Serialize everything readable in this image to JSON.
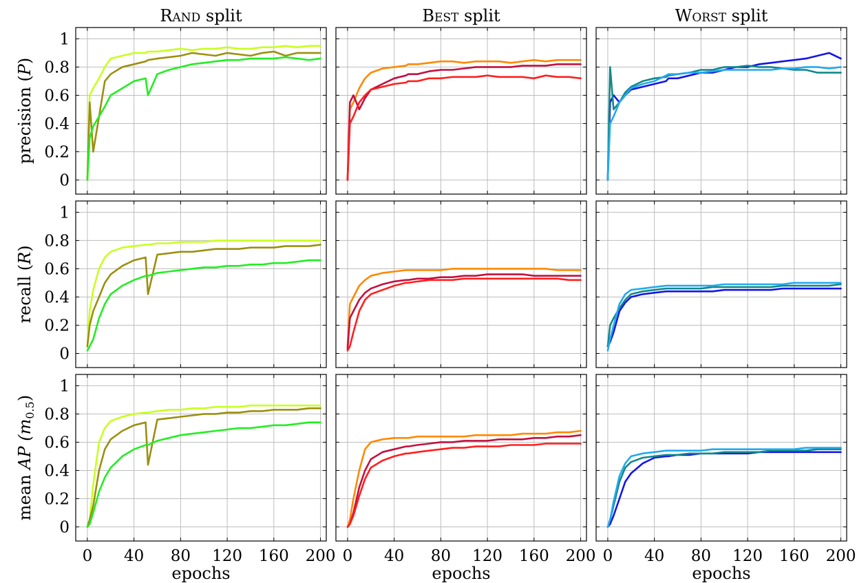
{
  "chart_data": {
    "type": "line",
    "layout": "3x3 grid of small multiples; rows = metrics, columns = data splits; shared x and y ticks",
    "grid": true,
    "columns": [
      {
        "key": "rand",
        "title_cap1": "R",
        "title_cap2": "AND",
        "title_rest": " split"
      },
      {
        "key": "best",
        "title_cap1": "B",
        "title_cap2": "EST",
        "title_rest": " split"
      },
      {
        "key": "worst",
        "title_cap1": "W",
        "title_cap2": "ORST",
        "title_rest": " split"
      }
    ],
    "rows": [
      {
        "key": "precision",
        "ylabel_pre": "precision (",
        "ylabel_var": "P",
        "ylabel_sub": "",
        "ylabel_post": ")"
      },
      {
        "key": "recall",
        "ylabel_pre": "recall (",
        "ylabel_var": "R",
        "ylabel_sub": "",
        "ylabel_post": ")"
      },
      {
        "key": "map",
        "ylabel_pre": "mean ",
        "ylabel_var": "AP (m",
        "ylabel_sub": "0.5",
        "ylabel_post": ")"
      }
    ],
    "xlabel": "epochs",
    "xlim": [
      -10,
      205
    ],
    "ylim": [
      -0.1,
      1.08
    ],
    "x_ticks": [
      0,
      40,
      80,
      120,
      160,
      200
    ],
    "y_ticks": [
      0,
      0.2,
      0.4,
      0.6,
      0.8,
      1
    ],
    "y_tick_labels": [
      "0",
      "0.2",
      "0.4",
      "0.6",
      "0.8",
      "1"
    ],
    "x_tick_labels": [
      "0",
      "40",
      "80",
      "120",
      "160",
      "200"
    ],
    "epochs": [
      0,
      2,
      5,
      10,
      15,
      20,
      30,
      40,
      50,
      52,
      60,
      70,
      80,
      90,
      100,
      110,
      120,
      130,
      140,
      150,
      160,
      170,
      180,
      190,
      200
    ],
    "series_colors": {
      "rand": [
        "#c8ff1e",
        "#9b8f0f",
        "#22ee22"
      ],
      "best": [
        "#ff8800",
        "#c2103f",
        "#ff1e1e"
      ],
      "worst": [
        "#1414e8",
        "#118888",
        "#22aaee"
      ]
    },
    "panels": {
      "precision": {
        "rand": [
          [
            0.0,
            0.6,
            0.65,
            0.72,
            0.8,
            0.86,
            0.88,
            0.9,
            0.9,
            0.91,
            0.91,
            0.92,
            0.93,
            0.92,
            0.93,
            0.93,
            0.94,
            0.93,
            0.93,
            0.94,
            0.94,
            0.95,
            0.94,
            0.95,
            0.95
          ],
          [
            0.0,
            0.55,
            0.2,
            0.45,
            0.7,
            0.75,
            0.8,
            0.82,
            0.84,
            0.85,
            0.86,
            0.87,
            0.88,
            0.9,
            0.89,
            0.88,
            0.9,
            0.89,
            0.88,
            0.9,
            0.91,
            0.88,
            0.9,
            0.9,
            0.9
          ],
          [
            0.0,
            0.3,
            0.38,
            0.45,
            0.52,
            0.6,
            0.65,
            0.7,
            0.72,
            0.6,
            0.75,
            0.78,
            0.8,
            0.82,
            0.83,
            0.84,
            0.85,
            0.85,
            0.86,
            0.86,
            0.86,
            0.87,
            0.86,
            0.85,
            0.86
          ]
        ],
        "best": [
          [
            0.0,
            0.5,
            0.55,
            0.65,
            0.72,
            0.76,
            0.79,
            0.8,
            0.81,
            0.82,
            0.82,
            0.83,
            0.84,
            0.84,
            0.83,
            0.84,
            0.84,
            0.84,
            0.83,
            0.84,
            0.85,
            0.84,
            0.85,
            0.85,
            0.85
          ],
          [
            0.0,
            0.55,
            0.6,
            0.5,
            0.58,
            0.64,
            0.68,
            0.72,
            0.74,
            0.75,
            0.75,
            0.77,
            0.78,
            0.78,
            0.79,
            0.8,
            0.8,
            0.8,
            0.8,
            0.81,
            0.81,
            0.81,
            0.82,
            0.82,
            0.82
          ],
          [
            0.0,
            0.4,
            0.45,
            0.55,
            0.6,
            0.64,
            0.66,
            0.68,
            0.69,
            0.7,
            0.7,
            0.72,
            0.72,
            0.73,
            0.73,
            0.73,
            0.74,
            0.73,
            0.73,
            0.73,
            0.72,
            0.74,
            0.73,
            0.73,
            0.72
          ]
        ],
        "worst": [
          [
            0.0,
            0.55,
            0.6,
            0.55,
            0.6,
            0.64,
            0.66,
            0.68,
            0.7,
            0.72,
            0.72,
            0.74,
            0.76,
            0.76,
            0.78,
            0.8,
            0.8,
            0.82,
            0.83,
            0.84,
            0.85,
            0.86,
            0.88,
            0.9,
            0.86
          ],
          [
            0.0,
            0.8,
            0.5,
            0.55,
            0.62,
            0.66,
            0.7,
            0.72,
            0.73,
            0.74,
            0.75,
            0.76,
            0.78,
            0.78,
            0.8,
            0.8,
            0.81,
            0.8,
            0.8,
            0.79,
            0.78,
            0.78,
            0.76,
            0.76,
            0.76
          ],
          [
            0.0,
            0.4,
            0.45,
            0.55,
            0.6,
            0.65,
            0.68,
            0.7,
            0.74,
            0.75,
            0.75,
            0.76,
            0.76,
            0.77,
            0.78,
            0.78,
            0.78,
            0.78,
            0.78,
            0.79,
            0.79,
            0.8,
            0.8,
            0.79,
            0.8
          ]
        ]
      },
      "recall": {
        "rand": [
          [
            0.05,
            0.3,
            0.45,
            0.6,
            0.68,
            0.72,
            0.75,
            0.76,
            0.77,
            0.77,
            0.78,
            0.78,
            0.79,
            0.79,
            0.79,
            0.8,
            0.8,
            0.8,
            0.8,
            0.8,
            0.8,
            0.8,
            0.8,
            0.8,
            0.8
          ],
          [
            0.05,
            0.2,
            0.3,
            0.4,
            0.5,
            0.56,
            0.62,
            0.66,
            0.68,
            0.42,
            0.7,
            0.71,
            0.72,
            0.72,
            0.73,
            0.74,
            0.74,
            0.74,
            0.75,
            0.75,
            0.75,
            0.76,
            0.76,
            0.76,
            0.77
          ],
          [
            0.02,
            0.05,
            0.1,
            0.25,
            0.35,
            0.42,
            0.48,
            0.52,
            0.55,
            0.55,
            0.57,
            0.58,
            0.59,
            0.6,
            0.61,
            0.61,
            0.62,
            0.62,
            0.63,
            0.63,
            0.64,
            0.64,
            0.65,
            0.66,
            0.66
          ]
        ],
        "best": [
          [
            0.05,
            0.35,
            0.4,
            0.48,
            0.52,
            0.55,
            0.57,
            0.58,
            0.59,
            0.59,
            0.59,
            0.59,
            0.59,
            0.6,
            0.6,
            0.6,
            0.6,
            0.6,
            0.6,
            0.6,
            0.6,
            0.6,
            0.59,
            0.59,
            0.59
          ],
          [
            0.03,
            0.25,
            0.3,
            0.38,
            0.43,
            0.46,
            0.49,
            0.51,
            0.52,
            0.52,
            0.53,
            0.53,
            0.54,
            0.54,
            0.55,
            0.55,
            0.56,
            0.56,
            0.56,
            0.56,
            0.55,
            0.55,
            0.55,
            0.55,
            0.55
          ],
          [
            0.02,
            0.05,
            0.15,
            0.3,
            0.38,
            0.42,
            0.45,
            0.48,
            0.5,
            0.5,
            0.51,
            0.52,
            0.52,
            0.52,
            0.53,
            0.53,
            0.53,
            0.53,
            0.53,
            0.53,
            0.53,
            0.53,
            0.53,
            0.52,
            0.52
          ]
        ],
        "worst": [
          [
            0.05,
            0.08,
            0.15,
            0.3,
            0.36,
            0.4,
            0.42,
            0.43,
            0.44,
            0.44,
            0.44,
            0.44,
            0.44,
            0.44,
            0.45,
            0.45,
            0.45,
            0.45,
            0.45,
            0.46,
            0.46,
            0.46,
            0.46,
            0.46,
            0.46
          ],
          [
            0.05,
            0.2,
            0.25,
            0.32,
            0.38,
            0.42,
            0.44,
            0.45,
            0.46,
            0.46,
            0.46,
            0.46,
            0.46,
            0.47,
            0.47,
            0.47,
            0.47,
            0.47,
            0.47,
            0.48,
            0.48,
            0.48,
            0.48,
            0.48,
            0.49
          ],
          [
            0.02,
            0.1,
            0.2,
            0.35,
            0.42,
            0.45,
            0.46,
            0.47,
            0.48,
            0.48,
            0.48,
            0.48,
            0.48,
            0.48,
            0.49,
            0.49,
            0.49,
            0.49,
            0.49,
            0.49,
            0.5,
            0.5,
            0.5,
            0.5,
            0.5
          ]
        ]
      },
      "map": {
        "rand": [
          [
            0.0,
            0.05,
            0.3,
            0.6,
            0.7,
            0.75,
            0.78,
            0.8,
            0.81,
            0.81,
            0.82,
            0.83,
            0.83,
            0.84,
            0.84,
            0.85,
            0.85,
            0.85,
            0.86,
            0.86,
            0.86,
            0.86,
            0.86,
            0.86,
            0.86
          ],
          [
            0.0,
            0.05,
            0.15,
            0.4,
            0.55,
            0.62,
            0.68,
            0.72,
            0.74,
            0.44,
            0.76,
            0.77,
            0.78,
            0.79,
            0.8,
            0.8,
            0.81,
            0.81,
            0.82,
            0.82,
            0.83,
            0.83,
            0.83,
            0.84,
            0.84
          ],
          [
            0.0,
            0.02,
            0.1,
            0.25,
            0.35,
            0.42,
            0.5,
            0.55,
            0.58,
            0.58,
            0.61,
            0.63,
            0.65,
            0.66,
            0.67,
            0.68,
            0.69,
            0.7,
            0.7,
            0.71,
            0.72,
            0.72,
            0.73,
            0.74,
            0.74
          ]
        ],
        "best": [
          [
            0.0,
            0.05,
            0.2,
            0.4,
            0.55,
            0.6,
            0.62,
            0.63,
            0.63,
            0.63,
            0.64,
            0.64,
            0.64,
            0.64,
            0.64,
            0.65,
            0.65,
            0.65,
            0.65,
            0.66,
            0.66,
            0.66,
            0.67,
            0.67,
            0.68
          ],
          [
            0.0,
            0.02,
            0.1,
            0.28,
            0.4,
            0.48,
            0.53,
            0.55,
            0.57,
            0.57,
            0.58,
            0.59,
            0.6,
            0.6,
            0.61,
            0.61,
            0.61,
            0.62,
            0.62,
            0.62,
            0.63,
            0.63,
            0.64,
            0.64,
            0.65
          ],
          [
            0.0,
            0.02,
            0.08,
            0.22,
            0.34,
            0.42,
            0.47,
            0.5,
            0.52,
            0.52,
            0.53,
            0.54,
            0.55,
            0.56,
            0.56,
            0.57,
            0.57,
            0.57,
            0.58,
            0.58,
            0.58,
            0.59,
            0.59,
            0.59,
            0.59
          ]
        ],
        "worst": [
          [
            0.0,
            0.02,
            0.08,
            0.2,
            0.32,
            0.38,
            0.45,
            0.49,
            0.5,
            0.5,
            0.51,
            0.51,
            0.52,
            0.52,
            0.52,
            0.52,
            0.52,
            0.53,
            0.53,
            0.53,
            0.53,
            0.53,
            0.53,
            0.53,
            0.53
          ],
          [
            0.0,
            0.05,
            0.15,
            0.32,
            0.42,
            0.46,
            0.49,
            0.5,
            0.51,
            0.51,
            0.51,
            0.52,
            0.52,
            0.52,
            0.53,
            0.53,
            0.53,
            0.53,
            0.54,
            0.54,
            0.54,
            0.54,
            0.55,
            0.55,
            0.55
          ],
          [
            0.0,
            0.05,
            0.18,
            0.36,
            0.45,
            0.5,
            0.52,
            0.53,
            0.54,
            0.54,
            0.54,
            0.54,
            0.54,
            0.55,
            0.55,
            0.55,
            0.55,
            0.55,
            0.55,
            0.55,
            0.55,
            0.56,
            0.56,
            0.56,
            0.56
          ]
        ]
      }
    }
  }
}
